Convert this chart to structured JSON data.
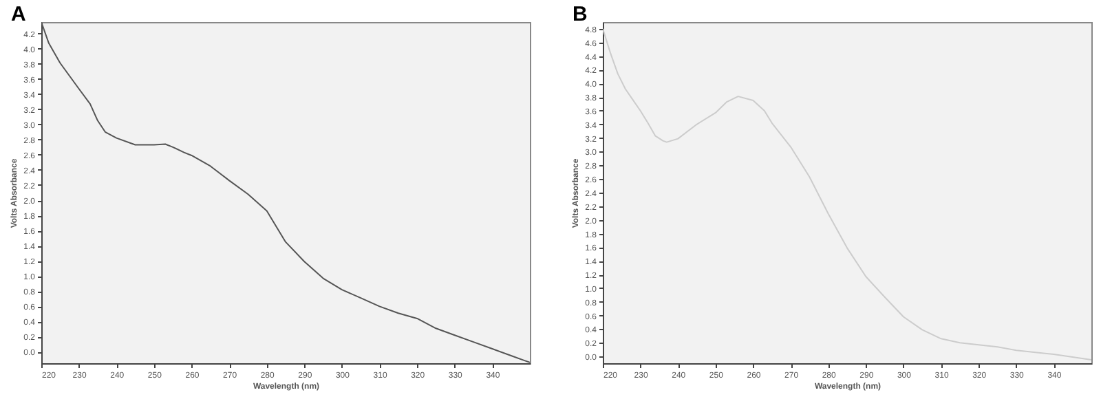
{
  "chart_data": [
    {
      "type": "line",
      "title": "A",
      "xlabel": "Wavelength (nm)",
      "ylabel": "Volts Absorbance",
      "xlim": [
        220,
        350
      ],
      "xticks": [
        220,
        230,
        240,
        250,
        260,
        270,
        280,
        290,
        300,
        310,
        320,
        330,
        340
      ],
      "ylim": [
        -0.15,
        4.35
      ],
      "yticks": [
        {
          "value": 0,
          "label": "0.0"
        },
        0.2,
        0.4,
        0.6,
        0.8,
        {
          "value": 1,
          "label": "1.0"
        },
        1.2,
        1.4,
        1.6,
        1.8,
        {
          "value": 2,
          "label": "2.0"
        },
        2.2,
        2.4,
        2.6,
        2.8,
        {
          "value": 3,
          "label": "3.0"
        },
        3.2,
        3.4,
        3.6,
        3.8,
        {
          "value": 4,
          "label": "4.0"
        },
        4.2
      ],
      "grid": false,
      "x": [
        220,
        222,
        225,
        230,
        233,
        235,
        237,
        240,
        245,
        250,
        253,
        255,
        258,
        260,
        265,
        270,
        275,
        280,
        285,
        290,
        295,
        300,
        305,
        310,
        315,
        320,
        325,
        330,
        335,
        340,
        345,
        350
      ],
      "series": [
        {
          "color": "#555555",
          "values": [
            4.35,
            4.07,
            3.81,
            3.47,
            3.27,
            3.05,
            2.9,
            2.82,
            2.73,
            2.73,
            2.74,
            2.7,
            2.63,
            2.59,
            2.45,
            2.26,
            2.08,
            1.86,
            1.45,
            1.19,
            0.97,
            0.82,
            0.71,
            0.6,
            0.51,
            0.44,
            0.31,
            0.22,
            0.13,
            0.04,
            -0.05,
            -0.14
          ]
        }
      ]
    },
    {
      "type": "line",
      "title": "B",
      "xlabel": "Wavelength (nm)",
      "ylabel": "Volts Absorbance",
      "xlim": [
        220,
        350
      ],
      "xticks": [
        220,
        230,
        240,
        250,
        260,
        270,
        280,
        290,
        300,
        310,
        320,
        330,
        340
      ],
      "ylim": [
        -0.1,
        4.9
      ],
      "yticks": [
        {
          "value": 0,
          "label": "0.0"
        },
        0.2,
        0.4,
        0.6,
        0.8,
        {
          "value": 1,
          "label": "1.0"
        },
        1.2,
        1.4,
        1.6,
        1.8,
        {
          "value": 2,
          "label": "2.0"
        },
        2.2,
        2.4,
        2.6,
        2.8,
        {
          "value": 3,
          "label": "3.0"
        },
        3.2,
        3.4,
        3.6,
        3.8,
        {
          "value": 4,
          "label": "4.0"
        },
        4.2,
        4.4,
        4.6,
        4.8
      ],
      "grid": false,
      "x": [
        220,
        222,
        224,
        226,
        228,
        230,
        232,
        234,
        236,
        237,
        240,
        245,
        250,
        253,
        256,
        260,
        263,
        265,
        270,
        275,
        280,
        285,
        290,
        295,
        300,
        305,
        310,
        315,
        320,
        325,
        330,
        340,
        350
      ],
      "series": [
        {
          "color": "#cccccc",
          "values": [
            4.8,
            4.45,
            4.14,
            3.92,
            3.76,
            3.6,
            3.42,
            3.23,
            3.16,
            3.14,
            3.19,
            3.4,
            3.57,
            3.73,
            3.81,
            3.75,
            3.6,
            3.42,
            3.07,
            2.63,
            2.09,
            1.59,
            1.17,
            0.87,
            0.58,
            0.39,
            0.26,
            0.2,
            0.17,
            0.14,
            0.09,
            0.03,
            -0.05
          ]
        }
      ]
    }
  ]
}
